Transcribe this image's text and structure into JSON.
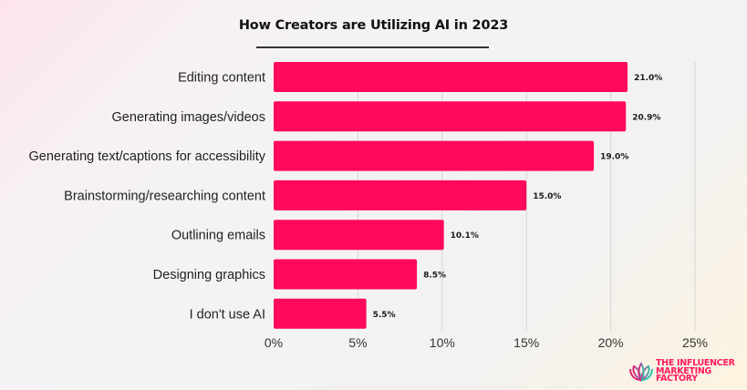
{
  "chart_data": {
    "type": "bar",
    "orientation": "horizontal",
    "title": "How Creators are Utilizing AI in 2023",
    "xlabel": "",
    "ylabel": "",
    "categories": [
      "Editing content",
      "Generating images/videos",
      "Generating text/captions for accessibility",
      "Brainstorming/researching content",
      "Outlining emails",
      "Designing graphics",
      "I don't use AI"
    ],
    "values": [
      21.0,
      20.9,
      19.0,
      15.0,
      10.1,
      8.5,
      5.5
    ],
    "value_labels": [
      "21.0%",
      "20.9%",
      "19.0%",
      "15.0%",
      "10.1%",
      "8.5%",
      "5.5%"
    ],
    "xlim": [
      0,
      25
    ],
    "x_ticks": [
      0,
      5,
      10,
      15,
      20,
      25
    ],
    "x_tick_labels": [
      "0%",
      "5%",
      "10%",
      "15%",
      "20%",
      "25%"
    ],
    "grid": "vertical",
    "legend": "none",
    "colors": {
      "bar": "#FF0A5A",
      "grid": "#d6d6d6"
    }
  },
  "branding": {
    "logo_icon": "lotus-icon",
    "logo_lines": [
      "THE INFLUENCER",
      "MARKETING",
      "FACTORY"
    ],
    "logo_color": "#FF1A5E"
  }
}
